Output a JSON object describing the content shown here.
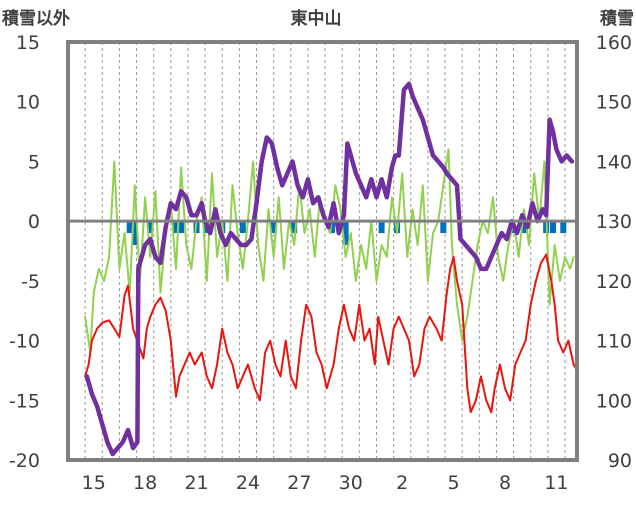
{
  "chart_data": {
    "type": "line",
    "title": "東中山",
    "ylabel_left": "積雪以外",
    "ylabel_right": "積雪",
    "y_left": {
      "min": -20,
      "max": 15,
      "ticks": [
        "15",
        "10",
        "5",
        "0",
        "-5",
        "-10",
        "-15",
        "-20"
      ]
    },
    "y_right": {
      "min": 90,
      "max": 160,
      "ticks": [
        "160",
        "150",
        "140",
        "130",
        "120",
        "110",
        "100",
        "90"
      ]
    },
    "x_range": [
      13.5,
      13.0
    ],
    "x_ticks": [
      "15",
      "18",
      "21",
      "24",
      "27",
      "30",
      "2",
      "5",
      "8",
      "11"
    ],
    "grid": "vertical-dashed",
    "zero_line": true,
    "colors": {
      "temperature": "#e8160f",
      "snow_depth": "#7030a0",
      "precipitation": "#92d050",
      "bars": "#0070c0",
      "axis": "#808080"
    },
    "series": [
      {
        "key": "temperature",
        "axis": "left",
        "points": [
          [
            14.5,
            -13
          ],
          [
            14.7,
            -12
          ],
          [
            14.9,
            -10
          ],
          [
            15.2,
            -9
          ],
          [
            15.5,
            -8.5
          ],
          [
            15.9,
            -8.3
          ],
          [
            16.2,
            -9
          ],
          [
            16.5,
            -9.7
          ],
          [
            16.8,
            -6.2
          ],
          [
            17.0,
            -5.4
          ],
          [
            17.3,
            -9
          ],
          [
            17.6,
            -10.3
          ],
          [
            17.9,
            -11.5
          ],
          [
            18.1,
            -9
          ],
          [
            18.3,
            -8
          ],
          [
            18.6,
            -7
          ],
          [
            18.9,
            -6.4
          ],
          [
            19.2,
            -7.5
          ],
          [
            19.5,
            -10
          ],
          [
            19.8,
            -14.7
          ],
          [
            20.0,
            -13
          ],
          [
            20.3,
            -12
          ],
          [
            20.6,
            -11
          ],
          [
            20.9,
            -12
          ],
          [
            21.3,
            -11
          ],
          [
            21.6,
            -13
          ],
          [
            21.9,
            -14
          ],
          [
            22.2,
            -12
          ],
          [
            22.5,
            -9
          ],
          [
            22.8,
            -11
          ],
          [
            23.1,
            -12
          ],
          [
            23.4,
            -14
          ],
          [
            23.7,
            -13
          ],
          [
            24.0,
            -12
          ],
          [
            24.4,
            -14
          ],
          [
            24.7,
            -15
          ],
          [
            25.0,
            -11
          ],
          [
            25.3,
            -10
          ],
          [
            25.6,
            -12
          ],
          [
            25.9,
            -13
          ],
          [
            26.2,
            -10
          ],
          [
            26.5,
            -13
          ],
          [
            26.8,
            -14
          ],
          [
            27.1,
            -10
          ],
          [
            27.4,
            -7
          ],
          [
            27.7,
            -8
          ],
          [
            28.0,
            -11
          ],
          [
            28.3,
            -12
          ],
          [
            28.6,
            -14
          ],
          [
            29.0,
            -12
          ],
          [
            29.3,
            -9
          ],
          [
            29.6,
            -7
          ],
          [
            29.9,
            -9
          ],
          [
            30.2,
            -10
          ],
          [
            30.5,
            -7
          ],
          [
            30.8,
            -10
          ],
          [
            31.1,
            -9
          ],
          [
            31.4,
            -12
          ],
          [
            31.6,
            -8
          ],
          [
            31.9,
            -10
          ],
          [
            32.2,
            -12
          ],
          [
            32.5,
            -9
          ],
          [
            32.8,
            -8
          ],
          [
            33.1,
            -9
          ],
          [
            33.4,
            -10
          ],
          [
            33.7,
            -13
          ],
          [
            34.0,
            -12
          ],
          [
            34.3,
            -9
          ],
          [
            34.6,
            -8
          ],
          [
            35.0,
            -9
          ],
          [
            35.3,
            -10
          ],
          [
            35.6,
            -6
          ],
          [
            35.8,
            -4
          ],
          [
            36.0,
            -3
          ],
          [
            36.2,
            -5
          ],
          [
            36.5,
            -7
          ],
          [
            36.8,
            -14
          ],
          [
            37.0,
            -16
          ],
          [
            37.3,
            -15
          ],
          [
            37.6,
            -13
          ],
          [
            37.9,
            -15
          ],
          [
            38.2,
            -16
          ],
          [
            38.4,
            -14
          ],
          [
            38.7,
            -12
          ],
          [
            39.0,
            -14
          ],
          [
            39.3,
            -15
          ],
          [
            39.6,
            -12
          ],
          [
            39.9,
            -11
          ],
          [
            40.2,
            -10
          ],
          [
            40.5,
            -7
          ],
          [
            40.8,
            -5
          ],
          [
            41.1,
            -3.5
          ],
          [
            41.4,
            -2.8
          ],
          [
            41.7,
            -5
          ],
          [
            41.9,
            -7
          ],
          [
            42.1,
            -10
          ],
          [
            42.4,
            -11
          ],
          [
            42.7,
            -10
          ],
          [
            43.0,
            -12
          ],
          [
            43.2,
            -12.5
          ]
        ]
      },
      {
        "key": "snow_depth",
        "axis": "right",
        "points": [
          [
            14.6,
            104
          ],
          [
            14.9,
            101
          ],
          [
            15.2,
            99
          ],
          [
            15.5,
            96
          ],
          [
            15.8,
            93
          ],
          [
            16.1,
            91
          ],
          [
            16.4,
            92
          ],
          [
            16.7,
            93
          ],
          [
            17.0,
            95
          ],
          [
            17.3,
            92
          ],
          [
            17.55,
            93
          ],
          [
            17.6,
            122
          ],
          [
            17.8,
            124
          ],
          [
            18.0,
            126
          ],
          [
            18.3,
            127
          ],
          [
            18.6,
            124
          ],
          [
            18.9,
            123
          ],
          [
            19.2,
            129
          ],
          [
            19.5,
            133
          ],
          [
            19.8,
            132
          ],
          [
            20.1,
            135
          ],
          [
            20.4,
            134
          ],
          [
            20.7,
            131
          ],
          [
            21.0,
            131
          ],
          [
            21.3,
            133
          ],
          [
            21.5,
            130
          ],
          [
            21.8,
            128
          ],
          [
            22.1,
            132
          ],
          [
            22.4,
            128
          ],
          [
            22.7,
            126
          ],
          [
            23.0,
            128
          ],
          [
            23.3,
            127
          ],
          [
            23.6,
            126
          ],
          [
            23.9,
            126
          ],
          [
            24.2,
            127
          ],
          [
            24.5,
            133
          ],
          [
            24.8,
            140
          ],
          [
            25.1,
            144
          ],
          [
            25.4,
            143
          ],
          [
            25.7,
            139
          ],
          [
            26.0,
            136
          ],
          [
            26.3,
            138
          ],
          [
            26.6,
            140
          ],
          [
            26.9,
            136
          ],
          [
            27.2,
            134
          ],
          [
            27.5,
            137
          ],
          [
            27.8,
            133
          ],
          [
            28.1,
            134
          ],
          [
            28.4,
            131
          ],
          [
            28.7,
            129
          ],
          [
            29.0,
            133
          ],
          [
            29.3,
            128
          ],
          [
            29.6,
            131
          ],
          [
            29.8,
            143
          ],
          [
            30.0,
            141
          ],
          [
            30.3,
            138
          ],
          [
            30.6,
            136
          ],
          [
            30.9,
            134
          ],
          [
            31.2,
            137
          ],
          [
            31.5,
            134
          ],
          [
            31.8,
            137
          ],
          [
            32.1,
            134
          ],
          [
            32.4,
            139
          ],
          [
            32.6,
            141
          ],
          [
            32.8,
            141
          ],
          [
            33.1,
            152
          ],
          [
            33.4,
            153
          ],
          [
            33.6,
            151
          ],
          [
            33.9,
            149
          ],
          [
            34.2,
            147
          ],
          [
            34.5,
            144
          ],
          [
            34.8,
            141
          ],
          [
            35.1,
            140
          ],
          [
            35.4,
            139
          ],
          [
            35.6,
            138
          ],
          [
            35.9,
            137
          ],
          [
            36.2,
            136
          ],
          [
            36.4,
            127
          ],
          [
            36.7,
            126
          ],
          [
            37.0,
            125
          ],
          [
            37.3,
            124
          ],
          [
            37.6,
            122
          ],
          [
            37.9,
            122
          ],
          [
            38.2,
            124
          ],
          [
            38.5,
            126
          ],
          [
            38.8,
            128
          ],
          [
            39.1,
            127
          ],
          [
            39.4,
            130
          ],
          [
            39.7,
            128
          ],
          [
            40.0,
            131
          ],
          [
            40.3,
            129
          ],
          [
            40.6,
            133
          ],
          [
            40.9,
            130
          ],
          [
            41.2,
            132
          ],
          [
            41.4,
            131
          ],
          [
            41.6,
            147
          ],
          [
            41.8,
            145
          ],
          [
            42.0,
            142
          ],
          [
            42.3,
            140
          ],
          [
            42.6,
            141
          ],
          [
            42.9,
            140
          ]
        ]
      },
      {
        "key": "precipitation",
        "axis": "left",
        "points": [
          [
            14.5,
            -8
          ],
          [
            14.8,
            -11
          ],
          [
            15.0,
            -6
          ],
          [
            15.3,
            -4
          ],
          [
            15.6,
            -5
          ],
          [
            15.9,
            -3
          ],
          [
            16.2,
            5
          ],
          [
            16.5,
            -4
          ],
          [
            16.8,
            -1
          ],
          [
            17.1,
            -6
          ],
          [
            17.4,
            3
          ],
          [
            17.7,
            -5
          ],
          [
            18.0,
            2
          ],
          [
            18.3,
            -3
          ],
          [
            18.6,
            2.5
          ],
          [
            18.9,
            -6
          ],
          [
            19.2,
            -1
          ],
          [
            19.5,
            1.5
          ],
          [
            19.8,
            -4
          ],
          [
            20.1,
            4.5
          ],
          [
            20.4,
            -2
          ],
          [
            20.7,
            -4
          ],
          [
            21.0,
            0
          ],
          [
            21.3,
            2
          ],
          [
            21.6,
            -5
          ],
          [
            21.9,
            4
          ],
          [
            22.2,
            -3
          ],
          [
            22.5,
            0
          ],
          [
            22.8,
            -5
          ],
          [
            23.1,
            3
          ],
          [
            23.4,
            -1
          ],
          [
            23.7,
            -4
          ],
          [
            24.0,
            0
          ],
          [
            24.3,
            5
          ],
          [
            24.6,
            -2
          ],
          [
            24.9,
            -5
          ],
          [
            25.2,
            1
          ],
          [
            25.5,
            -3
          ],
          [
            25.8,
            2
          ],
          [
            26.1,
            -4
          ],
          [
            26.4,
            0
          ],
          [
            26.7,
            -2
          ],
          [
            27.0,
            3
          ],
          [
            27.3,
            -1
          ],
          [
            27.6,
            1
          ],
          [
            27.9,
            -3
          ],
          [
            28.2,
            2
          ],
          [
            28.5,
            0
          ],
          [
            28.8,
            -1
          ],
          [
            29.1,
            3
          ],
          [
            29.4,
            1
          ],
          [
            29.7,
            -3
          ],
          [
            30.0,
            -1
          ],
          [
            30.3,
            -5
          ],
          [
            30.6,
            -2
          ],
          [
            30.9,
            -4
          ],
          [
            31.2,
            0
          ],
          [
            31.5,
            -5
          ],
          [
            31.8,
            -2
          ],
          [
            32.1,
            -3
          ],
          [
            32.4,
            2
          ],
          [
            32.7,
            -1
          ],
          [
            33.0,
            4
          ],
          [
            33.3,
            -3
          ],
          [
            33.6,
            1
          ],
          [
            33.9,
            -2
          ],
          [
            34.2,
            3
          ],
          [
            34.5,
            -5
          ],
          [
            34.8,
            -1
          ],
          [
            35.1,
            0
          ],
          [
            35.4,
            3
          ],
          [
            35.7,
            6
          ],
          [
            35.9,
            -2
          ],
          [
            36.2,
            -7
          ],
          [
            36.5,
            -10
          ],
          [
            36.8,
            -8
          ],
          [
            37.1,
            -5
          ],
          [
            37.4,
            -2
          ],
          [
            37.7,
            0
          ],
          [
            38.0,
            -1
          ],
          [
            38.3,
            2
          ],
          [
            38.6,
            -3
          ],
          [
            38.9,
            -5
          ],
          [
            39.2,
            -2
          ],
          [
            39.5,
            0
          ],
          [
            39.8,
            -3
          ],
          [
            40.1,
            1
          ],
          [
            40.4,
            -2
          ],
          [
            40.7,
            4
          ],
          [
            41.0,
            0
          ],
          [
            41.3,
            5
          ],
          [
            41.6,
            -7
          ],
          [
            41.9,
            -2
          ],
          [
            42.2,
            -5
          ],
          [
            42.5,
            -3
          ],
          [
            42.8,
            -4
          ],
          [
            43.0,
            -3
          ]
        ]
      }
    ],
    "bars": [
      [
        17.1,
        -1
      ],
      [
        17.4,
        -2
      ],
      [
        18.3,
        -1
      ],
      [
        19.8,
        -1
      ],
      [
        20.1,
        -1
      ],
      [
        21.0,
        -1
      ],
      [
        21.6,
        -1
      ],
      [
        22.5,
        -1
      ],
      [
        23.7,
        -1
      ],
      [
        25.5,
        -1
      ],
      [
        26.7,
        -1
      ],
      [
        28.9,
        -1
      ],
      [
        29.7,
        -2
      ],
      [
        31.8,
        -1
      ],
      [
        32.7,
        -1
      ],
      [
        35.4,
        -1
      ],
      [
        39.4,
        -1
      ],
      [
        40.1,
        -1
      ],
      [
        41.4,
        -1
      ],
      [
        41.8,
        -1
      ],
      [
        42.4,
        -1
      ]
    ]
  }
}
